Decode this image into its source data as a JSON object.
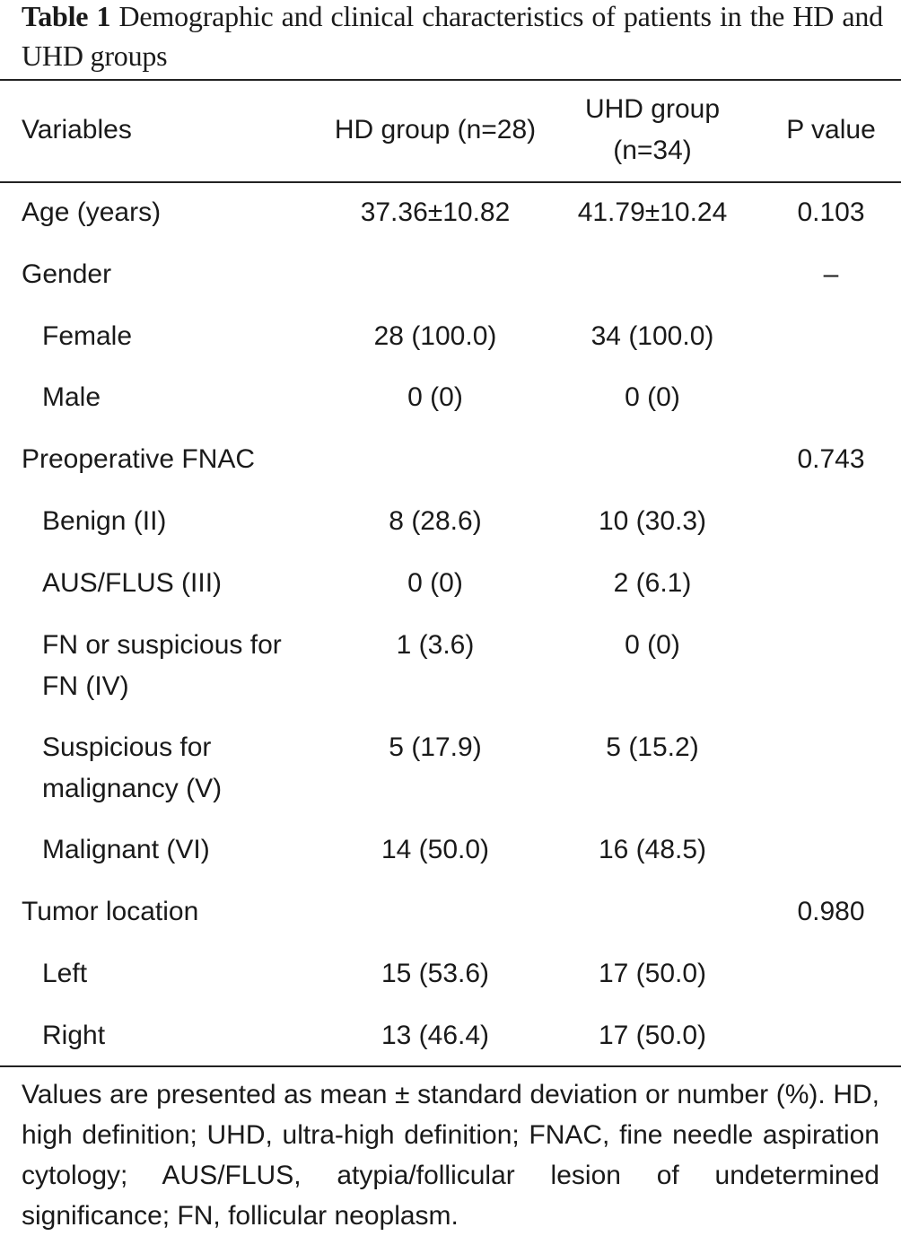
{
  "caption": {
    "label": "Table 1",
    "text": "Demographic and clinical characteristics of patients in the HD and UHD groups"
  },
  "table": {
    "headers": {
      "variables": "Variables",
      "hd": "HD group (n=28)",
      "uhd": "UHD group (n=34)",
      "p": "P value"
    },
    "rows": [
      {
        "label": "Age (years)",
        "hd": "37.36±10.82",
        "uhd": "41.79±10.24",
        "p": "0.103"
      },
      {
        "label": "Gender",
        "hd": "",
        "uhd": "",
        "p": "–"
      },
      {
        "label": "Female",
        "hd": "28 (100.0)",
        "uhd": "34 (100.0)",
        "p": ""
      },
      {
        "label": "Male",
        "hd": "0 (0)",
        "uhd": "0 (0)",
        "p": ""
      },
      {
        "label": "Preoperative FNAC",
        "hd": "",
        "uhd": "",
        "p": "0.743"
      },
      {
        "label": "Benign (II)",
        "hd": "8 (28.6)",
        "uhd": "10 (30.3)",
        "p": ""
      },
      {
        "label": "AUS/FLUS (III)",
        "hd": "0 (0)",
        "uhd": "2 (6.1)",
        "p": ""
      },
      {
        "label": "FN or suspicious for FN (IV)",
        "hd": "1 (3.6)",
        "uhd": "0 (0)",
        "p": ""
      },
      {
        "label": "Suspicious for malignancy (V)",
        "hd": "5 (17.9)",
        "uhd": "5 (15.2)",
        "p": ""
      },
      {
        "label": "Malignant (VI)",
        "hd": "14 (50.0)",
        "uhd": "16 (48.5)",
        "p": ""
      },
      {
        "label": "Tumor location",
        "hd": "",
        "uhd": "",
        "p": "0.980"
      },
      {
        "label": "Left",
        "hd": "15 (53.6)",
        "uhd": "17 (50.0)",
        "p": ""
      },
      {
        "label": "Right",
        "hd": "13 (46.4)",
        "uhd": "17 (50.0)",
        "p": ""
      }
    ]
  },
  "footnote": "Values are presented as mean ± standard deviation or number (%). HD, high definition; UHD, ultra-high definition; FNAC, fine needle aspiration cytology; AUS/FLUS, atypia/follicular lesion of undetermined significance; FN, follicular neoplasm."
}
